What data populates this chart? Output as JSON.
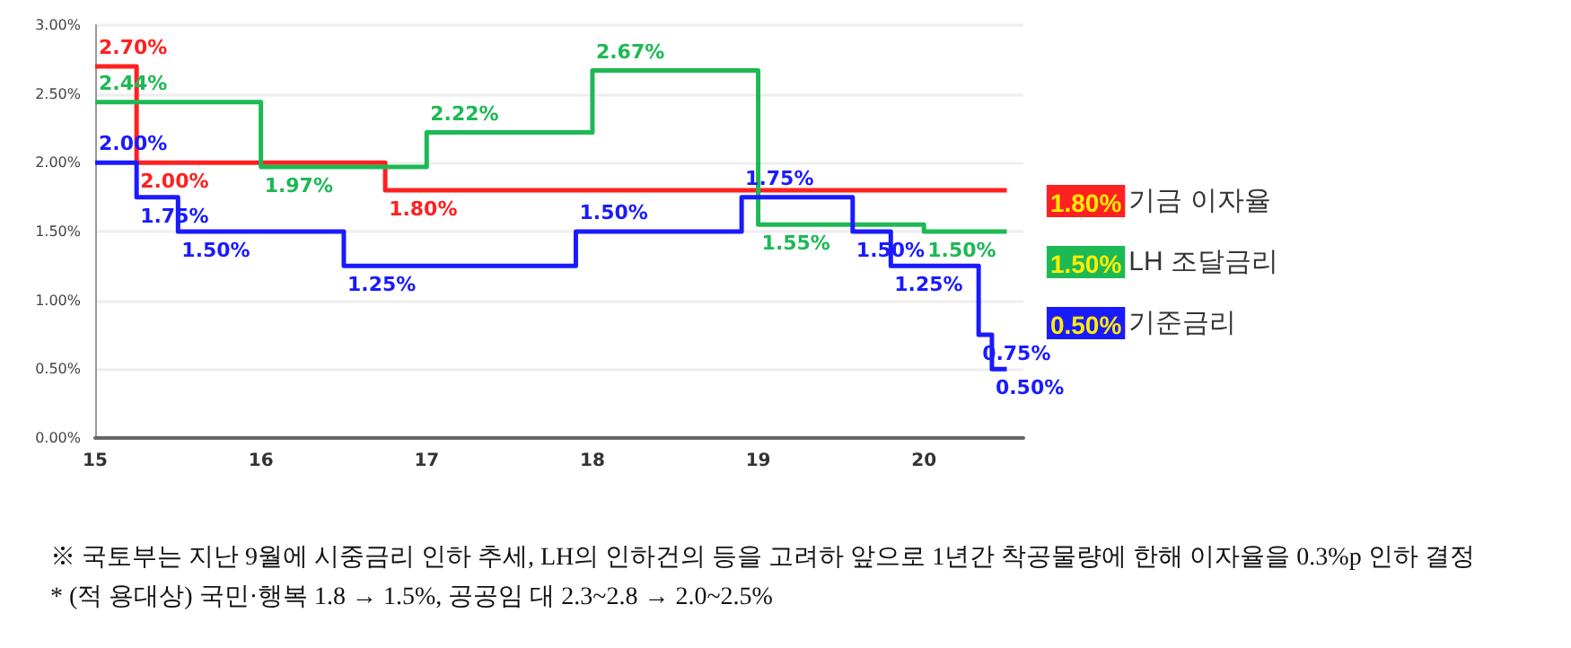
{
  "chart_data": {
    "type": "step",
    "series": [
      {
        "name": "기금 이자율",
        "color": "#ff2020",
        "x": [
          15,
          15.25,
          16.75,
          20.5
        ],
        "values": [
          2.7,
          2.0,
          1.8,
          1.8
        ],
        "value_labels": [
          "2.70%",
          "2.00%",
          "1.80%",
          null
        ]
      },
      {
        "name": "LH 조달금리",
        "color": "#1db954",
        "x": [
          15,
          16,
          17,
          18,
          19,
          20,
          20.5
        ],
        "values": [
          2.44,
          1.97,
          2.22,
          2.67,
          1.55,
          1.5,
          1.5
        ],
        "value_labels": [
          "2.44%",
          "1.97%",
          "2.22%",
          "2.67%",
          "1.55%",
          "1.50%",
          null
        ]
      },
      {
        "name": "기준금리",
        "color": "#1a1aff",
        "x": [
          15,
          15.25,
          15.5,
          16.5,
          17.9,
          18.9,
          19.57,
          19.8,
          20.33,
          20.41,
          20.5
        ],
        "values": [
          2.0,
          1.75,
          1.5,
          1.25,
          1.5,
          1.75,
          1.5,
          1.25,
          0.75,
          0.5,
          0.5
        ],
        "value_labels": [
          "2.00%",
          "1.75%",
          "1.50%",
          "1.25%",
          "1.50%",
          "1.75%",
          "1.50%",
          "1.25%",
          "0.75%",
          "0.50%",
          null
        ]
      }
    ],
    "xlim": [
      15,
      20.6
    ],
    "xticks": [
      15,
      16,
      17,
      18,
      19,
      20
    ],
    "ylim": [
      0,
      3
    ],
    "yticks": [
      {
        "value": 0,
        "label": "0.00%"
      },
      {
        "value": 0.5,
        "label": "0.50%"
      },
      {
        "value": 1,
        "label": "1.00%"
      },
      {
        "value": 1.5,
        "label": "1.50%"
      },
      {
        "value": 2,
        "label": "2.00%"
      },
      {
        "value": 2.5,
        "label": "2.50%"
      },
      {
        "value": 3,
        "label": "3.00%"
      }
    ],
    "grid": "y",
    "legend": "right",
    "marker": "none",
    "line_style": "solid",
    "annotations": [
      "※ 국토부는 지난 9월에 시중금리 인하 추세, LH의 인하건의 등을 고려하 앞으로 1년간 착공물량에 한해 이자율을 0.3%p 인하 결정",
      "* (적 용대상) 국민·행복 1.8 → 1.5%, 공공임 대 2.3~2.8 → 2.0~2.5%"
    ]
  }
}
